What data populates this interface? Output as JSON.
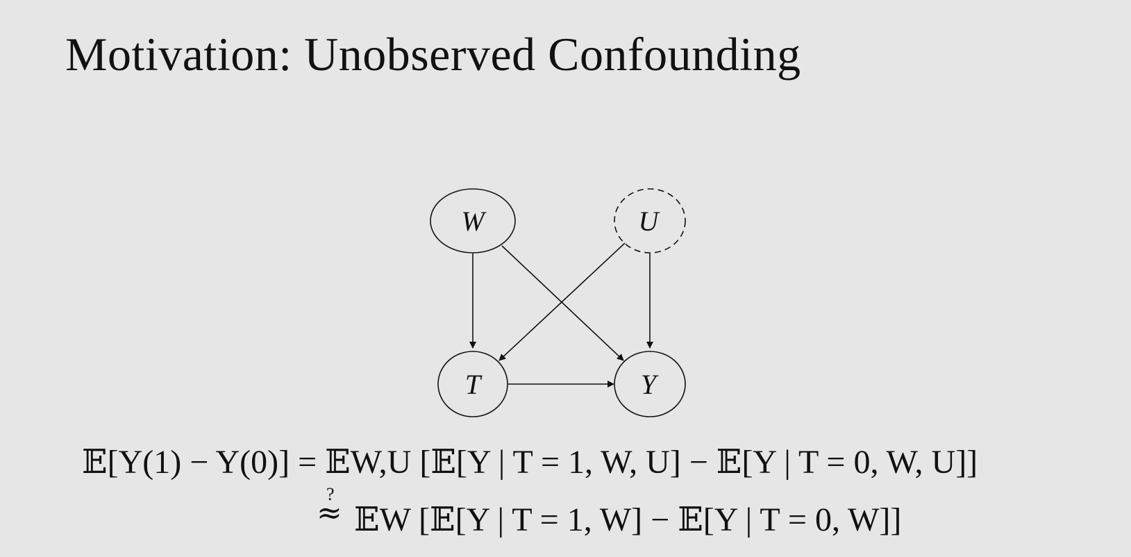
{
  "title": "Motivation: Unobserved Confounding",
  "diagram": {
    "nodes": [
      {
        "id": "W",
        "label": "W",
        "observed": true
      },
      {
        "id": "U",
        "label": "U",
        "observed": false
      },
      {
        "id": "T",
        "label": "T",
        "observed": true
      },
      {
        "id": "Y",
        "label": "Y",
        "observed": true
      }
    ],
    "edges": [
      {
        "from": "W",
        "to": "T"
      },
      {
        "from": "W",
        "to": "Y"
      },
      {
        "from": "U",
        "to": "T"
      },
      {
        "from": "U",
        "to": "Y"
      },
      {
        "from": "T",
        "to": "Y"
      }
    ]
  },
  "equation": {
    "line1": "𝔼[Y(1) − Y(0)] = 𝔼W,U [𝔼[Y | T = 1, W, U] − 𝔼[Y | T = 0, W, U]]",
    "line2": "𝔼W [𝔼[Y | T = 1, W] − 𝔼[Y | T = 0, W]]",
    "approx_marker": "?",
    "approx_symbol": "≈"
  }
}
